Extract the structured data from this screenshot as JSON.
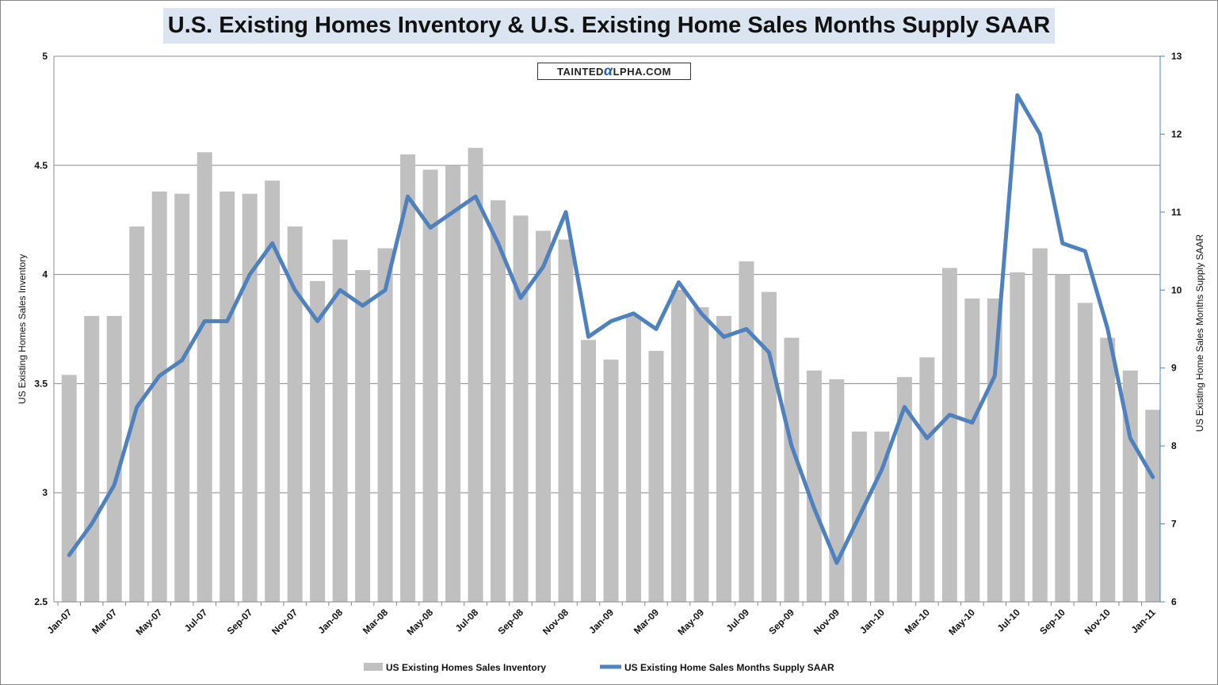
{
  "chart_data": {
    "type": "bar+line",
    "title": "U.S. Existing Homes Inventory & U.S. Existing Home Sales Months Supply SAAR",
    "watermark": "TaintedAlpha.com",
    "categories": [
      "Jan-07",
      "Feb-07",
      "Mar-07",
      "Apr-07",
      "May-07",
      "Jun-07",
      "Jul-07",
      "Aug-07",
      "Sep-07",
      "Oct-07",
      "Nov-07",
      "Dec-07",
      "Jan-08",
      "Feb-08",
      "Mar-08",
      "Apr-08",
      "May-08",
      "Jun-08",
      "Jul-08",
      "Aug-08",
      "Sep-08",
      "Oct-08",
      "Nov-08",
      "Dec-08",
      "Jan-09",
      "Feb-09",
      "Mar-09",
      "Apr-09",
      "May-09",
      "Jun-09",
      "Jul-09",
      "Aug-09",
      "Sep-09",
      "Oct-09",
      "Nov-09",
      "Dec-09",
      "Jan-10",
      "Feb-10",
      "Mar-10",
      "Apr-10",
      "May-10",
      "Jun-10",
      "Jul-10",
      "Aug-10",
      "Sep-10",
      "Oct-10",
      "Nov-10",
      "Dec-10",
      "Jan-11"
    ],
    "x_tick_labels": [
      "Jan-07",
      "Mar-07",
      "May-07",
      "Jul-07",
      "Sep-07",
      "Nov-07",
      "Jan-08",
      "Mar-08",
      "May-08",
      "Jul-08",
      "Sep-08",
      "Nov-08",
      "Jan-09",
      "Mar-09",
      "May-09",
      "Jul-09",
      "Sep-09",
      "Nov-09",
      "Jan-10",
      "Mar-10",
      "May-10",
      "Jul-10",
      "Sep-10",
      "Nov-10",
      "Jan-11"
    ],
    "series": [
      {
        "name": "US Existing Homes Sales Inventory",
        "type": "bar",
        "axis": "left",
        "color": "#c0c0c0",
        "values": [
          3.54,
          3.81,
          3.81,
          4.22,
          4.38,
          4.37,
          4.56,
          4.38,
          4.37,
          4.43,
          4.22,
          3.97,
          4.16,
          4.02,
          4.12,
          4.55,
          4.48,
          4.5,
          4.58,
          4.34,
          4.27,
          4.2,
          4.16,
          3.7,
          3.61,
          3.81,
          3.65,
          3.93,
          3.85,
          3.81,
          4.06,
          3.92,
          3.71,
          3.56,
          3.52,
          3.28,
          3.28,
          3.53,
          3.62,
          4.03,
          3.89,
          3.89,
          4.01,
          4.12,
          4.0,
          3.87,
          3.71,
          3.56,
          3.38
        ]
      },
      {
        "name": "US Existing Home Sales Months Supply SAAR",
        "type": "line",
        "axis": "right",
        "color": "#4f81bd",
        "values": [
          6.6,
          7.0,
          7.5,
          8.5,
          8.9,
          9.1,
          9.6,
          9.6,
          10.2,
          10.6,
          10.0,
          9.6,
          10.0,
          9.8,
          10.0,
          11.2,
          10.8,
          11.0,
          11.2,
          10.6,
          9.9,
          10.3,
          11.0,
          9.4,
          9.6,
          9.7,
          9.5,
          10.1,
          9.7,
          9.4,
          9.5,
          9.2,
          8.0,
          7.2,
          6.5,
          7.1,
          7.7,
          8.5,
          8.1,
          8.4,
          8.3,
          8.9,
          12.5,
          12.0,
          10.6,
          10.5,
          9.5,
          8.1,
          7.6
        ]
      }
    ],
    "y_left": {
      "label": "US Existing Homes Sales Inventory",
      "range": [
        2.5,
        5
      ],
      "ticks": [
        "2.5",
        "3",
        "3.5",
        "4",
        "4.5",
        "5"
      ]
    },
    "y_right": {
      "label": "US Existing Home Sales Months Supply SAAR",
      "range": [
        6,
        13
      ],
      "ticks": [
        "6",
        "7",
        "8",
        "9",
        "10",
        "11",
        "12",
        "13"
      ]
    },
    "grid": true,
    "legend": "bottom"
  }
}
